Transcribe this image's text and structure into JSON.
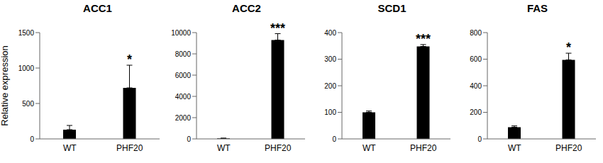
{
  "chart_data": [
    {
      "type": "bar",
      "title": "ACC1",
      "ylabel": "Relative expression",
      "categories": [
        "WT",
        "PHF20"
      ],
      "values": [
        130,
        720
      ],
      "errors": [
        60,
        320
      ],
      "color": "#000000",
      "ylim": [
        0,
        1500
      ],
      "yticks": [
        0,
        500,
        1000,
        1500
      ],
      "grid": false,
      "annotations": [
        {
          "category": "PHF20",
          "text": "*"
        }
      ]
    },
    {
      "type": "bar",
      "title": "ACC2",
      "categories": [
        "WT",
        "PHF20"
      ],
      "values": [
        50,
        9300
      ],
      "errors": [
        20,
        600
      ],
      "color": "#000000",
      "ylim": [
        0,
        10000
      ],
      "yticks": [
        0,
        2000,
        4000,
        6000,
        8000,
        10000
      ],
      "grid": false,
      "annotations": [
        {
          "category": "PHF20",
          "text": "***"
        }
      ]
    },
    {
      "type": "bar",
      "title": "SCD1",
      "categories": [
        "WT",
        "PHF20"
      ],
      "values": [
        100,
        348
      ],
      "errors": [
        5,
        7
      ],
      "color": "#000000",
      "ylim": [
        0,
        400
      ],
      "yticks": [
        0,
        100,
        200,
        300,
        400
      ],
      "grid": false,
      "annotations": [
        {
          "category": "PHF20",
          "text": "***"
        }
      ]
    },
    {
      "type": "bar",
      "title": "FAS",
      "categories": [
        "WT",
        "PHF20"
      ],
      "values": [
        88,
        595
      ],
      "errors": [
        10,
        50
      ],
      "color": "#000000",
      "ylim": [
        0,
        800
      ],
      "yticks": [
        0,
        200,
        400,
        600,
        800
      ],
      "grid": false,
      "annotations": [
        {
          "category": "PHF20",
          "text": "*"
        }
      ]
    }
  ]
}
